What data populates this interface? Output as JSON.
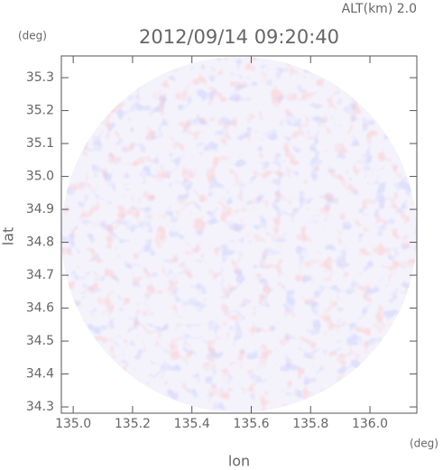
{
  "chart_data": {
    "type": "image",
    "title": "2012/09/14 09:20:40",
    "subtitle": "ALT(km)  2.0",
    "xlabel": "lon",
    "ylabel": "lat",
    "xunit": "(deg)",
    "yunit": "(deg)",
    "xlim": [
      134.96,
      136.158
    ],
    "ylim": [
      34.281,
      35.366
    ],
    "xticks": [
      {
        "value": 135,
        "label": "135.0"
      },
      135.2,
      135.4,
      135.6,
      135.8,
      {
        "value": 136,
        "label": "136.0"
      }
    ],
    "yticks": [
      34.3,
      34.4,
      34.5,
      34.6,
      34.7,
      34.8,
      34.9,
      {
        "value": 35,
        "label": "35.0"
      },
      35.1,
      35.2,
      35.3
    ]
  }
}
